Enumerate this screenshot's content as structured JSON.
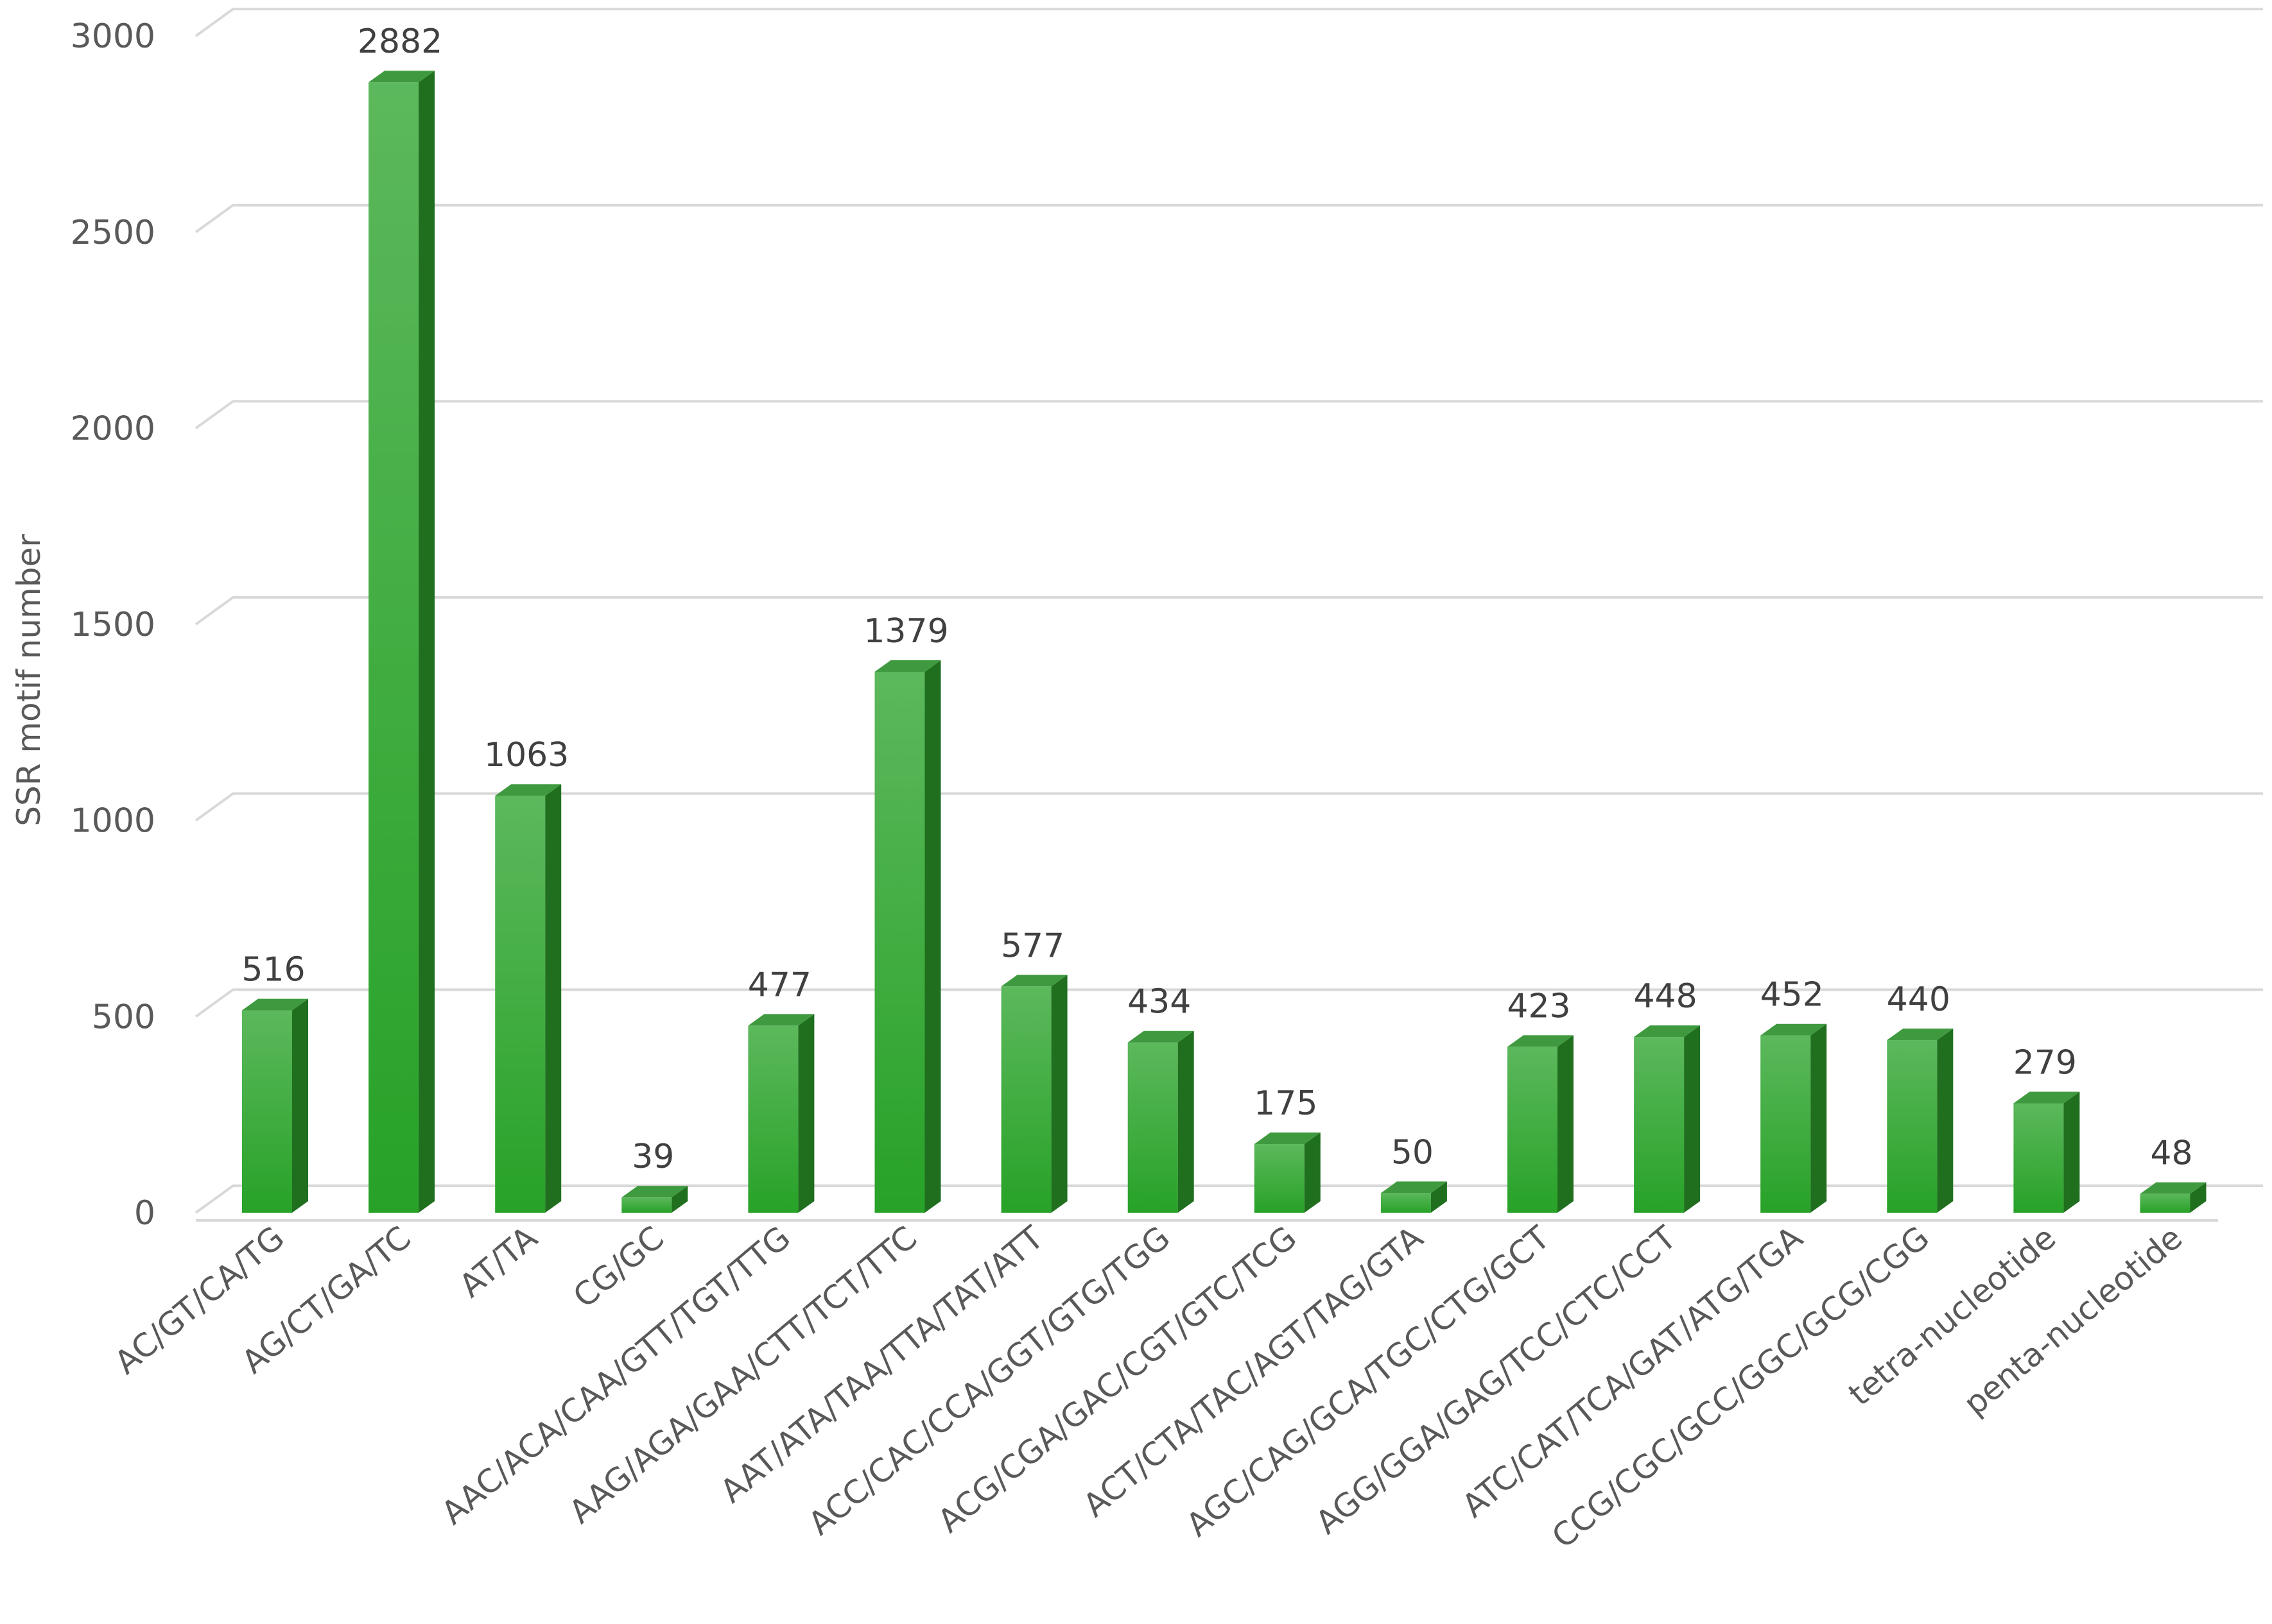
{
  "chart_data": {
    "type": "bar",
    "title": "",
    "xlabel": "",
    "ylabel": "SSR motif number",
    "ylim": [
      0,
      3000
    ],
    "yticks": [
      0,
      500,
      1000,
      1500,
      2000,
      2500,
      3000
    ],
    "grid": true,
    "legend": "none",
    "bar_color": "#2ea82e",
    "bar_side_color": "#1f6f1f",
    "bar_top_color": "#3f9a3f",
    "categories": [
      "AC/GT/CA/TG",
      "AG/CT/GA/TC",
      "AT/TA",
      "CG/GC",
      "AAC/ACA/CAA/GTT/TGT/TTG",
      "AAG/AGA/GAA/CTT/TCT/TTC",
      "AAT/ATA/TAA/TTA/TAT/ATT",
      "ACC/CAC/CCA/GGT/GTG/TGG",
      "ACG/CGA/GAC/CGT/GTC/TCG",
      "ACT/CTA/TAC/AGT/TAG/GTA",
      "AGC/CAG/GCA/TGC/CTG/GCT",
      "AGG/GGA/GAG/TCC/CTC/CCT",
      "ATC/CAT/TCA/GAT/ATG/TGA",
      "CCG/CGC/GCC/GGC/GCG/CGG",
      "tetra-nucleotide",
      "penta-nucleotide"
    ],
    "values": [
      516,
      2882,
      1063,
      39,
      477,
      1379,
      577,
      434,
      175,
      50,
      423,
      448,
      452,
      440,
      279,
      48
    ]
  }
}
